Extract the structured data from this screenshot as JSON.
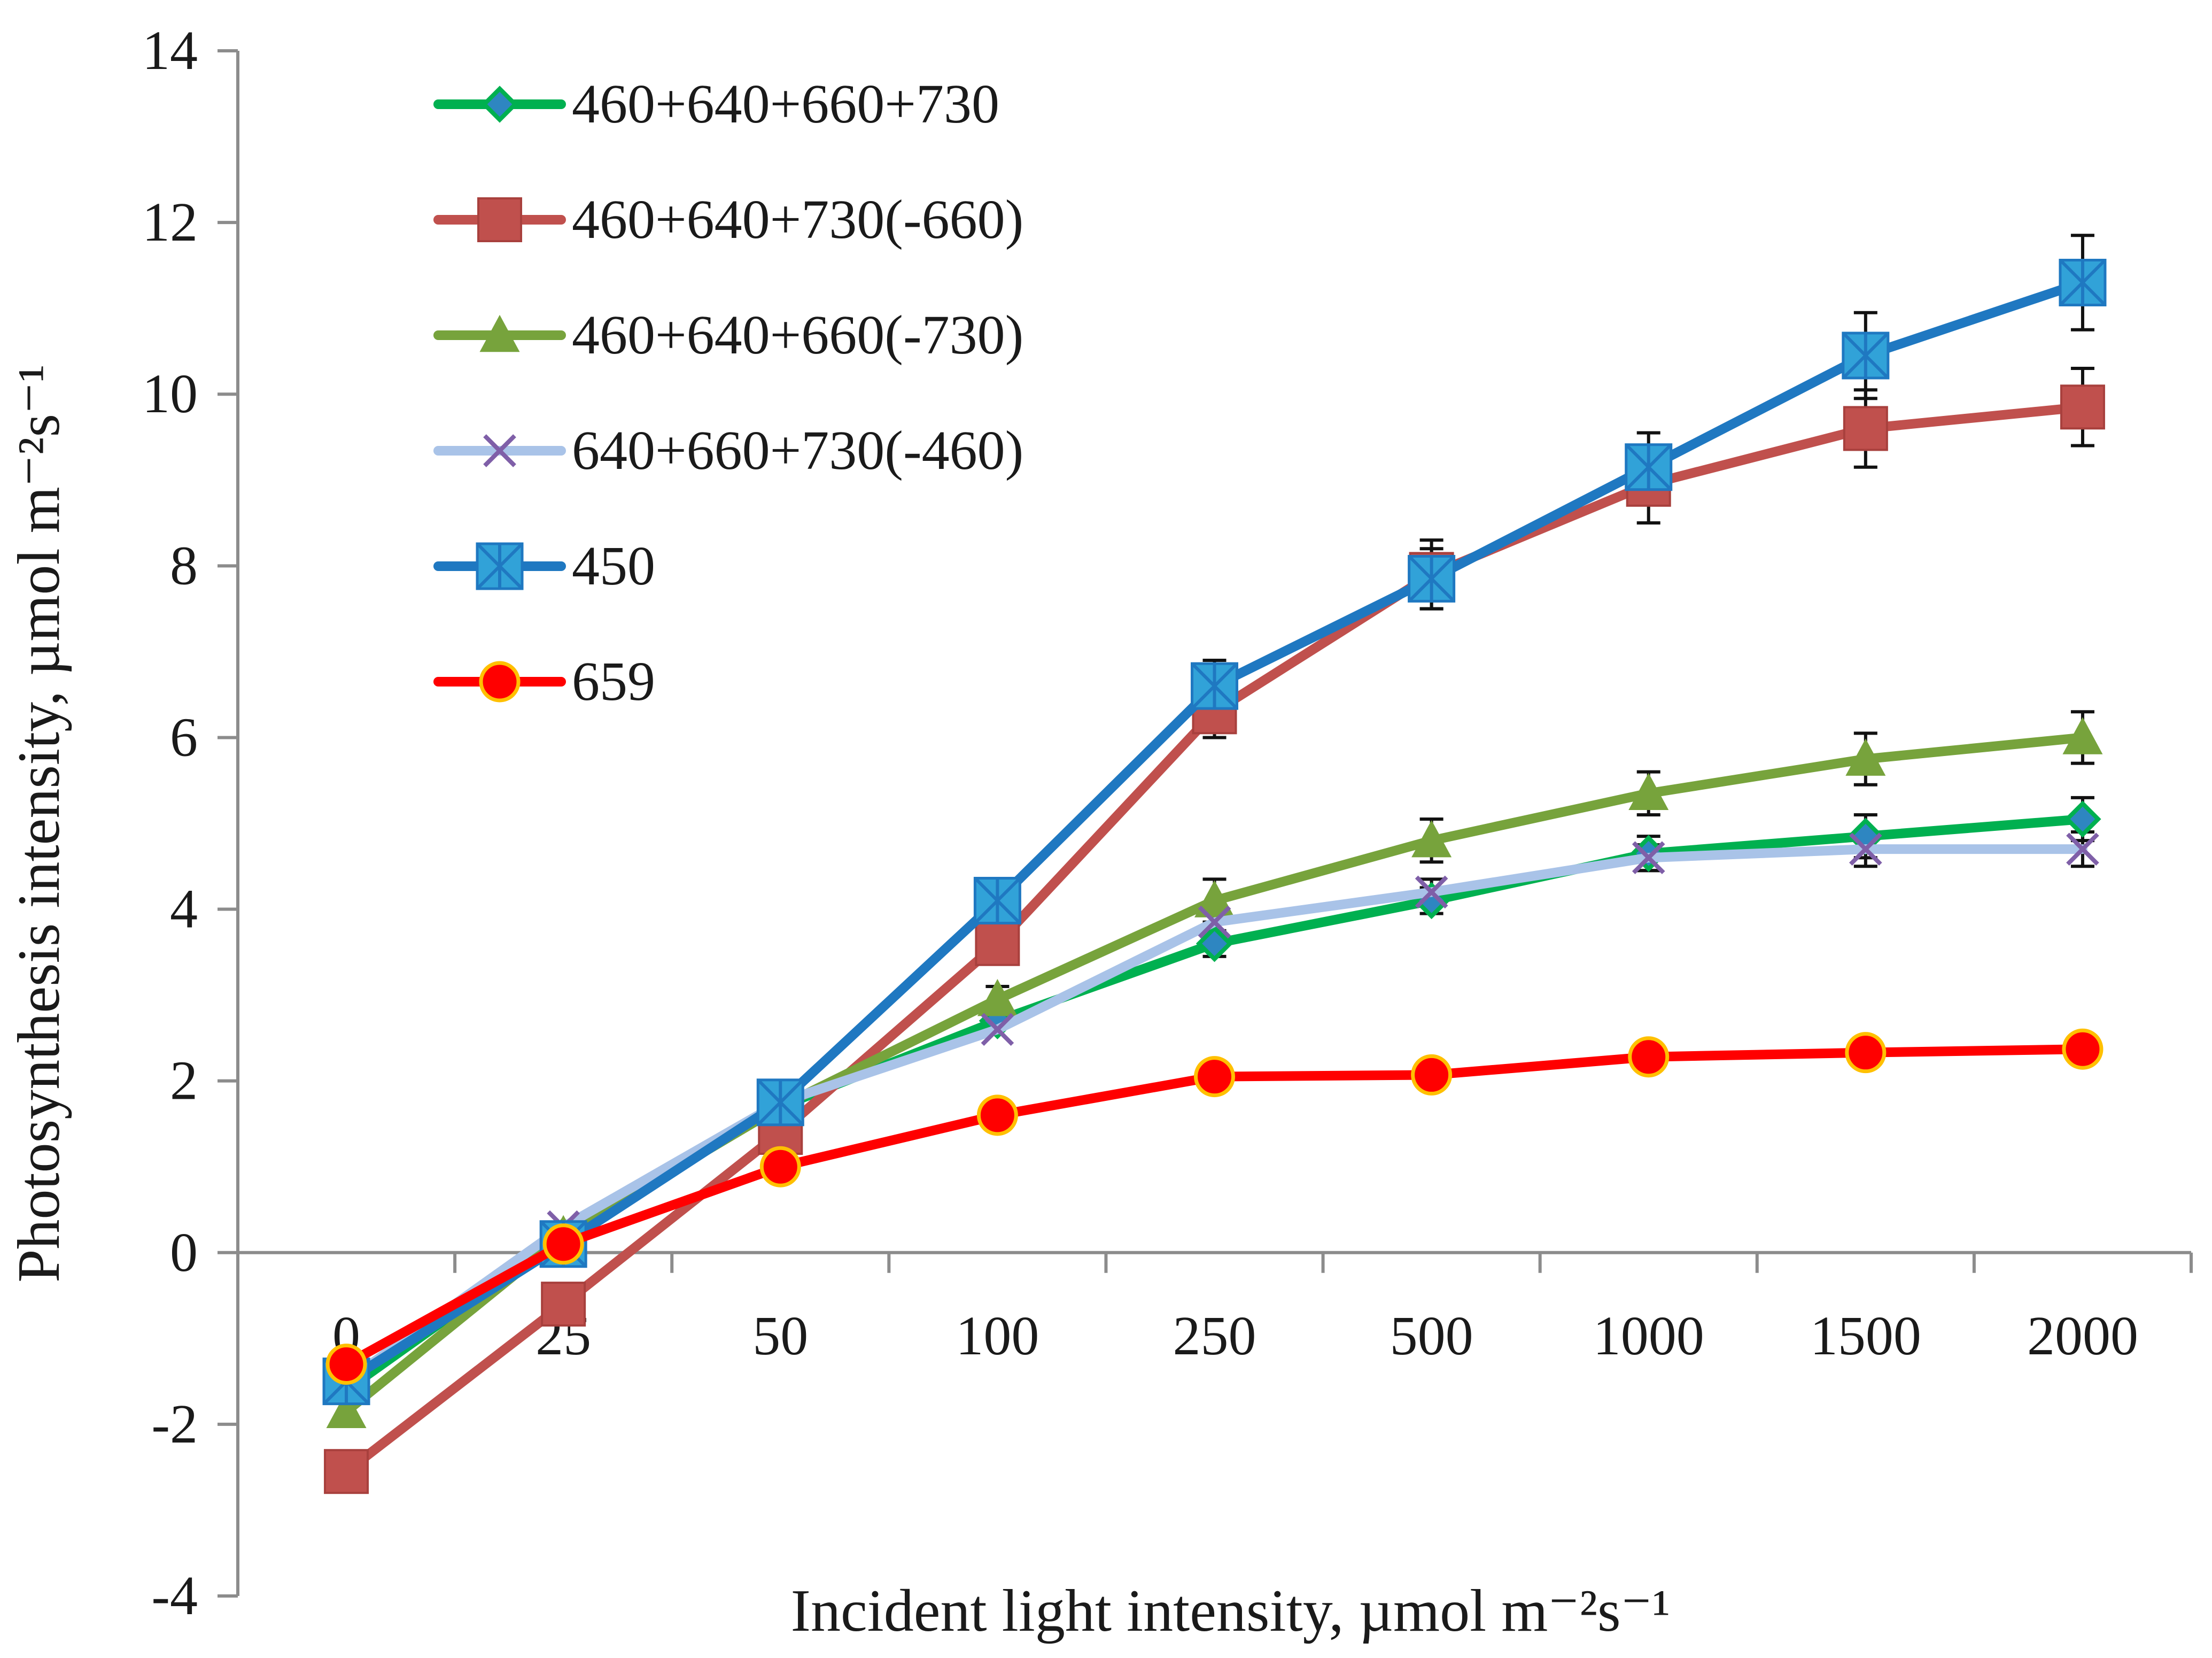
{
  "chart_data": {
    "type": "line",
    "title": "",
    "xlabel": "Incident light intensity, µmol m⁻²s⁻¹",
    "ylabel": "Photosynthesis intensity, µmol m⁻²s⁻¹",
    "categories": [
      "0",
      "25",
      "50",
      "100",
      "250",
      "500",
      "1000",
      "1500",
      "2000"
    ],
    "ylim": [
      -4,
      14
    ],
    "yticks": [
      "-4",
      "-2",
      "0",
      "2",
      "4",
      "6",
      "8",
      "10",
      "12",
      "14"
    ],
    "grid": false,
    "legend_position": "top-left",
    "error_bars": true,
    "series": [
      {
        "name": "460+640+660+730",
        "color": "#00b050",
        "marker_color": "#2e86c1",
        "marker": "diamond",
        "values": [
          -1.6,
          0.2,
          1.7,
          2.7,
          3.6,
          4.1,
          4.65,
          4.85,
          5.05
        ],
        "errors": [
          0,
          0,
          0,
          0,
          0.15,
          0.15,
          0.2,
          0.25,
          0.25
        ]
      },
      {
        "name": "460+640+730(-660)",
        "color": "#c0504d",
        "marker_color": "#c0504d",
        "marker": "square",
        "values": [
          -2.55,
          -0.6,
          1.4,
          3.6,
          6.3,
          7.9,
          8.95,
          9.6,
          9.85
        ],
        "errors": [
          0,
          0,
          0,
          0,
          0.3,
          0.4,
          0.45,
          0.45,
          0.45
        ]
      },
      {
        "name": "460+640+660(-730)",
        "color": "#77a33c",
        "marker_color": "#77a33c",
        "marker": "triangle",
        "values": [
          -1.85,
          0.2,
          1.7,
          2.95,
          4.1,
          4.8,
          5.35,
          5.75,
          6.0
        ],
        "errors": [
          0,
          0,
          0,
          0.15,
          0.25,
          0.25,
          0.25,
          0.3,
          0.3
        ]
      },
      {
        "name": "640+660+730(-460)",
        "color": "#a9c3e8",
        "marker_color": "#7f5fa8",
        "marker": "x",
        "values": [
          -1.5,
          0.3,
          1.75,
          2.6,
          3.85,
          4.2,
          4.6,
          4.7,
          4.7
        ],
        "errors": [
          0,
          0,
          0,
          0,
          0.15,
          0.15,
          0.15,
          0.2,
          0.2
        ]
      },
      {
        "name": "450",
        "color": "#1f78c1",
        "marker_color": "#31a2d8",
        "marker": "asterisk-square",
        "values": [
          -1.5,
          0.1,
          1.75,
          4.1,
          6.6,
          7.85,
          9.15,
          10.45,
          11.3
        ],
        "errors": [
          0,
          0,
          0,
          0,
          0.3,
          0.35,
          0.4,
          0.5,
          0.55
        ]
      },
      {
        "name": "659",
        "color": "#ff0000",
        "marker_color": "#ff0000",
        "marker": "circle",
        "values": [
          -1.3,
          0.1,
          1.0,
          1.6,
          2.05,
          2.07,
          2.28,
          2.33,
          2.37
        ],
        "errors": [
          0,
          0,
          0,
          0,
          0,
          0,
          0,
          0,
          0
        ]
      }
    ]
  }
}
